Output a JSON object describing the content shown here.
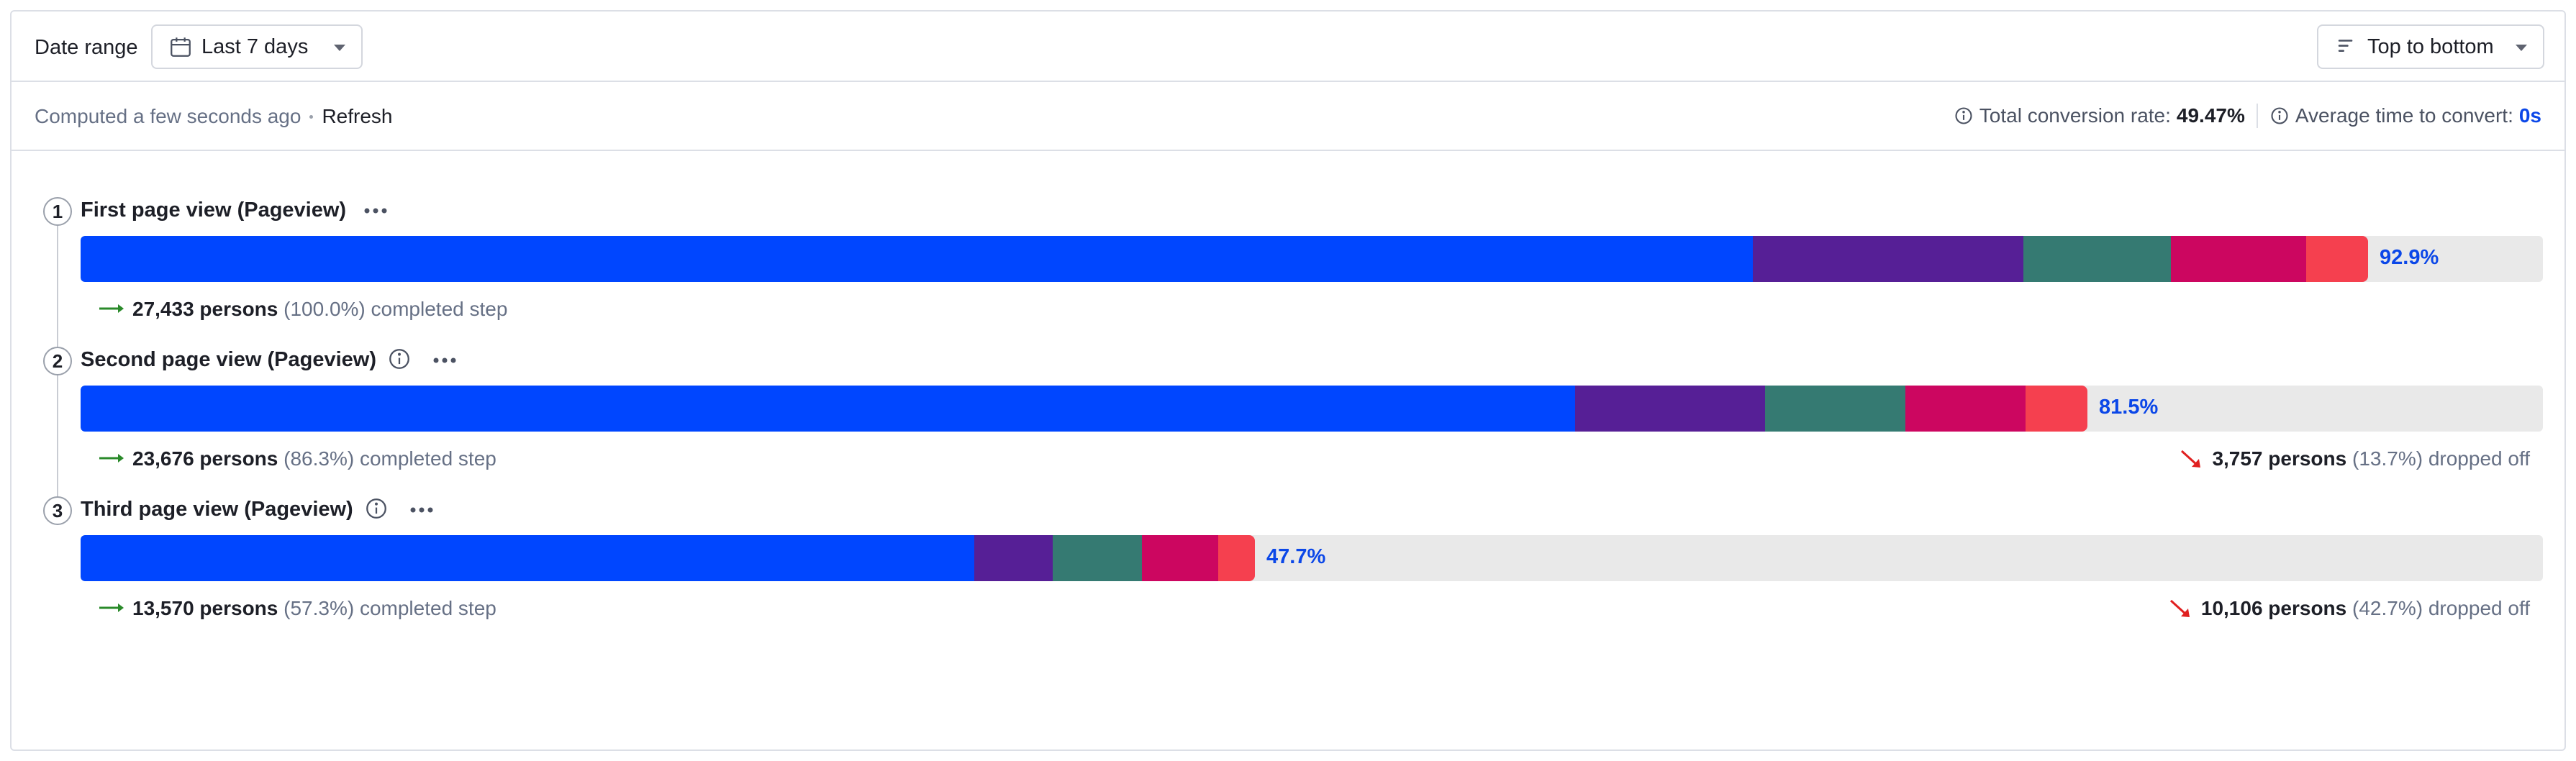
{
  "toolbar": {
    "date_label": "Date range",
    "date_value": "Last 7 days",
    "order_value": "Top to bottom"
  },
  "status": {
    "computed_text": "Computed a few seconds ago",
    "refresh_label": "Refresh",
    "conversion_label": "Total conversion rate:",
    "conversion_value": "49.47%",
    "avg_time_label": "Average time to convert:",
    "avg_time_value": "0s"
  },
  "colors": {
    "blue": "#0046ff",
    "purple": "#561f96",
    "teal": "#357a72",
    "magenta": "#cc0660",
    "coral": "#f5404f",
    "track": "#e9e9e9",
    "completed_arrow": "#2a8a2a",
    "dropoff_arrow": "#e02020"
  },
  "steps": [
    {
      "number": "1",
      "title": "First page view (Pageview)",
      "percent_label": "92.9%",
      "fill_fraction": 0.929,
      "segments": [
        0.679,
        0.11,
        0.06,
        0.055,
        0.025
      ],
      "completed_count": "27,433 persons",
      "completed_pct": "(100.0%)",
      "completed_text": "completed step"
    },
    {
      "number": "2",
      "title": "Second page view (Pageview)",
      "percent_label": "81.5%",
      "fill_fraction": 0.815,
      "segments": [
        0.607,
        0.077,
        0.057,
        0.049,
        0.025
      ],
      "completed_count": "23,676 persons",
      "completed_pct": "(86.3%)",
      "completed_text": "completed step",
      "dropped_count": "3,757 persons",
      "dropped_pct": "(13.7%)",
      "dropped_text": "dropped off"
    },
    {
      "number": "3",
      "title": "Third page view (Pageview)",
      "percent_label": "47.7%",
      "fill_fraction": 0.477,
      "segments": [
        0.363,
        0.032,
        0.036,
        0.031,
        0.015
      ],
      "completed_count": "13,570 persons",
      "completed_pct": "(57.3%)",
      "completed_text": "completed step",
      "dropped_count": "10,106 persons",
      "dropped_pct": "(42.7%)",
      "dropped_text": "dropped off"
    }
  ]
}
